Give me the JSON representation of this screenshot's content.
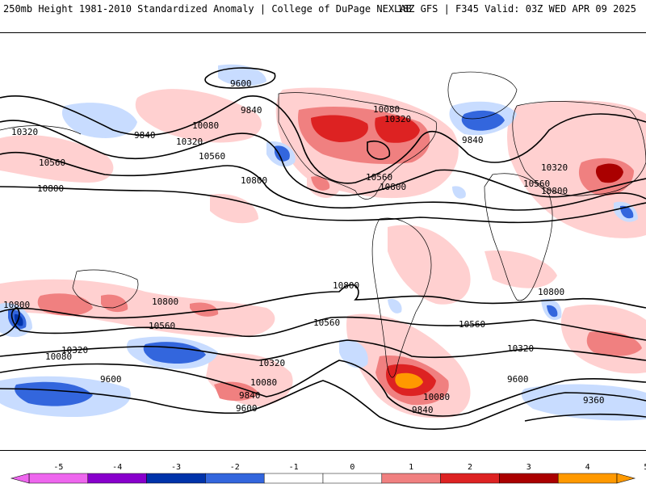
{
  "header": {
    "left_title": "250mb Height 1981-2010 Standardized Anomaly | College of DuPage NEXLAB",
    "right_title": "18Z GFS | F345 Valid: 03Z WED APR 09 2025"
  },
  "colorbar": {
    "ticks": [
      "-5",
      "-4",
      "-3",
      "-2",
      "-1",
      "0",
      "1",
      "2",
      "3",
      "4",
      "5"
    ],
    "colors": [
      "#ee66ee",
      "#8800cc",
      "#0033aa",
      "#3366dd",
      "#c8dcff",
      "#ffffff",
      "#ffd0d0",
      "#f08080",
      "#dd2222",
      "#aa0000",
      "#ff9900"
    ]
  },
  "contour_labels": [
    "9600",
    "9840",
    "10080",
    "10320",
    "10560",
    "10800",
    "10320",
    "9840",
    "10080",
    "10320",
    "10560",
    "10800",
    "10560",
    "10800",
    "9840",
    "10320",
    "10560",
    "10800",
    "10800",
    "10800",
    "10560",
    "10320",
    "10080",
    "9840",
    "9600",
    "10560",
    "10320",
    "10080",
    "9840",
    "9600",
    "10800",
    "10560",
    "10320",
    "9600",
    "9360",
    "10080",
    "9840"
  ]
}
